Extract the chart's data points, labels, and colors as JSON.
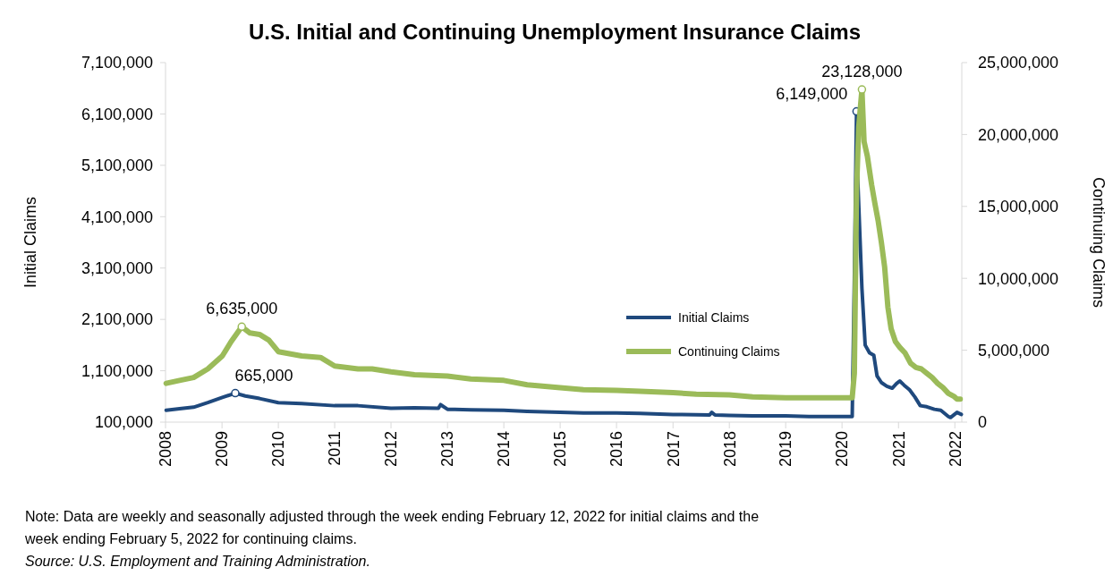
{
  "chart_data": {
    "type": "line",
    "title": "U.S. Initial and Continuing Unemployment Insurance Claims",
    "ylabel": "Initial Claims",
    "y2label": "Continuing Claims",
    "xlim": [
      "2008-01",
      "2022-02-15"
    ],
    "xticks": [
      "2008",
      "2009",
      "2010",
      "2011",
      "2012",
      "2013",
      "2014",
      "2015",
      "2016",
      "2017",
      "2018",
      "2019",
      "2020",
      "2021",
      "2022"
    ],
    "ylim": [
      100000,
      7100000
    ],
    "yticks": [
      {
        "value": 100000,
        "label": "100,000"
      },
      {
        "value": 1100000,
        "label": "1,100,000"
      },
      {
        "value": 2100000,
        "label": "2,100,000"
      },
      {
        "value": 3100000,
        "label": "3,100,000"
      },
      {
        "value": 4100000,
        "label": "4,100,000"
      },
      {
        "value": 5100000,
        "label": "5,100,000"
      },
      {
        "value": 6100000,
        "label": "6,100,000"
      },
      {
        "value": 7100000,
        "label": "7,100,000"
      }
    ],
    "y2lim": [
      0,
      25000000
    ],
    "y2ticks": [
      0,
      {
        "value": 5000000,
        "label": "5,000,000"
      },
      {
        "value": 10000000,
        "label": "10,000,000"
      },
      {
        "value": 15000000,
        "label": "15,000,000"
      },
      {
        "value": 20000000,
        "label": "20,000,000"
      },
      {
        "value": 25000000,
        "label": "25,000,000"
      }
    ],
    "grid": false,
    "legend": "right",
    "series": [
      {
        "name": "Initial Claims",
        "color": "#1f497d",
        "x": [
          "2008-01-05",
          "2008-04-01",
          "2008-07-01",
          "2008-10-01",
          "2009-01-03",
          "2009-03-28",
          "2009-06-01",
          "2009-09-01",
          "2010-01-01",
          "2010-06-01",
          "2011-01-01",
          "2011-06-01",
          "2012-01-01",
          "2012-06-01",
          "2012-11-03",
          "2012-11-17",
          "2013-01-01",
          "2013-06-01",
          "2014-01-01",
          "2014-06-01",
          "2015-01-01",
          "2015-06-01",
          "2016-01-01",
          "2016-06-01",
          "2017-01-01",
          "2017-08-26",
          "2017-09-09",
          "2017-09-30",
          "2018-01-01",
          "2018-06-01",
          "2019-01-01",
          "2019-06-01",
          "2020-01-01",
          "2020-03-07",
          "2020-03-21",
          "2020-04-04",
          "2020-04-11",
          "2020-04-25",
          "2020-05-09",
          "2020-05-30",
          "2020-06-27",
          "2020-07-25",
          "2020-08-15",
          "2020-09-12",
          "2020-10-17",
          "2020-11-21",
          "2020-12-19",
          "2021-01-09",
          "2021-02-06",
          "2021-03-13",
          "2021-04-17",
          "2021-05-22",
          "2021-07-03",
          "2021-08-21",
          "2021-10-02",
          "2021-11-20",
          "2021-12-04",
          "2022-01-15",
          "2022-02-12"
        ],
        "values": [
          330000,
          360000,
          390000,
          480000,
          580000,
          665000,
          610000,
          560000,
          480000,
          460000,
          420000,
          420000,
          370000,
          380000,
          370000,
          440000,
          350000,
          340000,
          330000,
          310000,
          290000,
          280000,
          280000,
          270000,
          250000,
          240000,
          290000,
          240000,
          230000,
          220000,
          220000,
          210000,
          210000,
          210000,
          2900000,
          6149000,
          4900000,
          3800000,
          2700000,
          1600000,
          1450000,
          1400000,
          1000000,
          870000,
          800000,
          760000,
          850000,
          900000,
          820000,
          730000,
          590000,
          420000,
          400000,
          350000,
          330000,
          210000,
          190000,
          290000,
          250000
        ],
        "value_labels": [
          null,
          null,
          null,
          null,
          null,
          "665,000",
          null,
          null,
          null,
          null,
          null,
          null,
          null,
          null,
          null,
          null,
          null,
          null,
          null,
          null,
          null,
          null,
          null,
          null,
          null,
          null,
          null,
          null,
          null,
          null,
          null,
          null,
          null,
          null,
          null,
          "6,149,000",
          null,
          null,
          null,
          null,
          null,
          null,
          null,
          null,
          null,
          null,
          null,
          null,
          null,
          null,
          null,
          null,
          null,
          null,
          null,
          null,
          null,
          null,
          null
        ]
      },
      {
        "name": "Continuing Claims",
        "color": "#9bbb59",
        "axis": "y2",
        "x": [
          "2008-01-05",
          "2008-04-01",
          "2008-07-01",
          "2008-10-01",
          "2009-01-03",
          "2009-03-01",
          "2009-05-09",
          "2009-07-01",
          "2009-09-01",
          "2009-11-01",
          "2010-01-01",
          "2010-06-01",
          "2010-10-01",
          "2011-01-01",
          "2011-06-01",
          "2011-09-01",
          "2012-01-01",
          "2012-06-01",
          "2013-01-01",
          "2013-06-01",
          "2014-01-01",
          "2014-06-01",
          "2015-01-01",
          "2015-06-01",
          "2016-01-01",
          "2016-06-01",
          "2017-01-01",
          "2017-06-01",
          "2018-01-01",
          "2018-06-01",
          "2019-01-01",
          "2019-06-01",
          "2020-01-01",
          "2020-03-07",
          "2020-03-21",
          "2020-04-04",
          "2020-04-18",
          "2020-05-09",
          "2020-05-23",
          "2020-06-13",
          "2020-07-11",
          "2020-08-01",
          "2020-08-22",
          "2020-09-12",
          "2020-10-03",
          "2020-10-24",
          "2020-11-14",
          "2020-12-12",
          "2021-01-09",
          "2021-02-13",
          "2021-03-20",
          "2021-04-24",
          "2021-05-29",
          "2021-07-03",
          "2021-08-07",
          "2021-09-11",
          "2021-10-16",
          "2021-11-20",
          "2021-12-25",
          "2022-01-15",
          "2022-02-05"
        ],
        "values": [
          2700000,
          2900000,
          3100000,
          3700000,
          4600000,
          5600000,
          6635000,
          6200000,
          6100000,
          5700000,
          4900000,
          4600000,
          4500000,
          3900000,
          3700000,
          3700000,
          3500000,
          3300000,
          3200000,
          3000000,
          2900000,
          2600000,
          2400000,
          2250000,
          2200000,
          2150000,
          2050000,
          1950000,
          1900000,
          1750000,
          1700000,
          1700000,
          1700000,
          1700000,
          3400000,
          16000000,
          20500000,
          23128000,
          19500000,
          18500000,
          16500000,
          15200000,
          14000000,
          12500000,
          10800000,
          8000000,
          6500000,
          5600000,
          5200000,
          4800000,
          4100000,
          3800000,
          3700000,
          3400000,
          3100000,
          2700000,
          2400000,
          2000000,
          1800000,
          1600000,
          1600000
        ],
        "value_labels": [
          null,
          null,
          null,
          null,
          null,
          null,
          "6,635,000",
          null,
          null,
          null,
          null,
          null,
          null,
          null,
          null,
          null,
          null,
          null,
          null,
          null,
          null,
          null,
          null,
          null,
          null,
          null,
          null,
          null,
          null,
          null,
          null,
          null,
          null,
          null,
          null,
          null,
          null,
          "23,128,000",
          null,
          null,
          null,
          null,
          null,
          null,
          null,
          null,
          null,
          null,
          null,
          null,
          null,
          null,
          null,
          null,
          null,
          null,
          null,
          null,
          null,
          null,
          null
        ]
      }
    ],
    "annotations": [
      "Note: Data are weekly and seasonally adjusted through the week ending February 12, 2022 for initial claims and the week ending February 5, 2022 for continuing claims.",
      "Source:  U.S. Employment and Training Administration."
    ]
  }
}
